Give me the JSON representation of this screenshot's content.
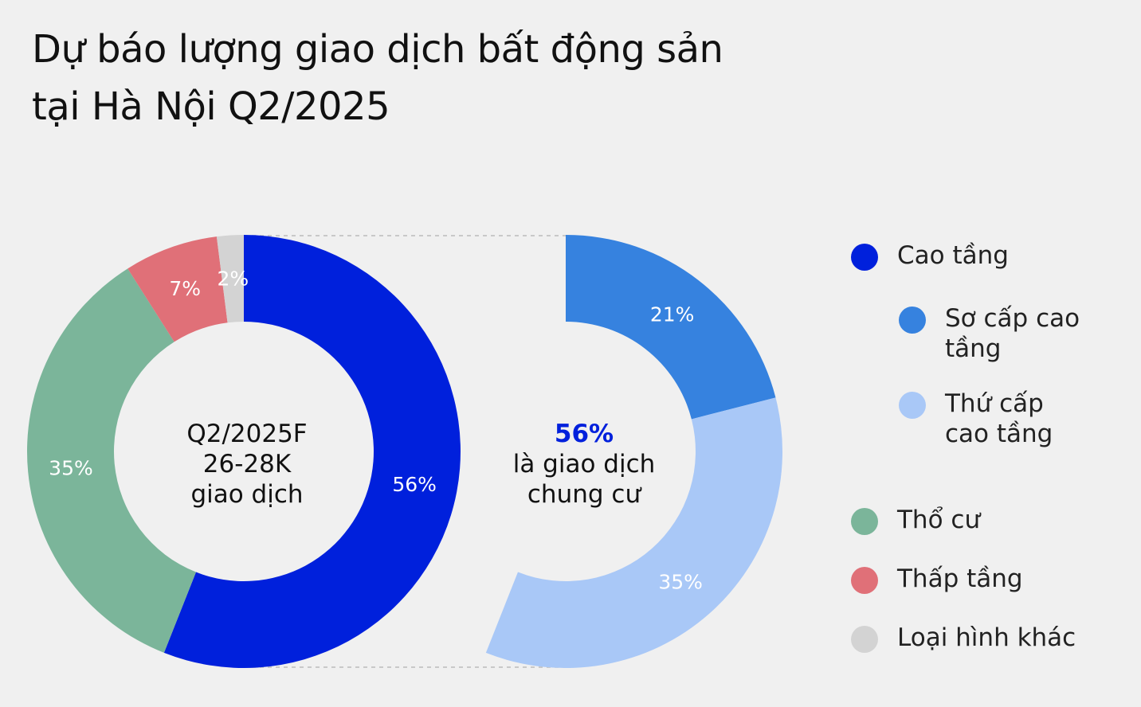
{
  "title_lines": [
    "Dự báo lượng giao dịch bất động sản",
    "tại Hà Nội Q2/2025"
  ],
  "colors": {
    "cao_tang": "#0020dc",
    "so_cap": "#3682df",
    "thu_cap": "#a9c8f7",
    "tho_cu": "#7bb59a",
    "thap_tang": "#e07078",
    "khac": "#d3d3d3",
    "bg": "#f0f0f0"
  },
  "chart_data": [
    {
      "type": "pie",
      "variant": "donut",
      "center_text": [
        "Q2/2025F",
        "26-28K",
        "giao dịch"
      ],
      "slices": [
        {
          "label": "Cao tầng",
          "value": 56,
          "label_text": "56%",
          "color": "#0020dc"
        },
        {
          "label": "Thổ cư",
          "value": 35,
          "label_text": "35%",
          "color": "#7bb59a"
        },
        {
          "label": "Thấp tầng",
          "value": 7,
          "label_text": "7%",
          "color": "#e07078"
        },
        {
          "label": "Loại hình khác",
          "value": 2,
          "label_text": "2%",
          "color": "#d3d3d3"
        }
      ]
    },
    {
      "type": "pie",
      "variant": "partial-donut",
      "center_highlight": "56%",
      "center_text": [
        "là giao dịch",
        "chung cư"
      ],
      "slices": [
        {
          "label": "Sơ cấp cao tầng",
          "value": 21,
          "label_text": "21%",
          "color": "#3682df"
        },
        {
          "label": "Thứ cấp cao tầng",
          "value": 35,
          "label_text": "35%",
          "color": "#a9c8f7"
        }
      ]
    }
  ],
  "legend": [
    {
      "label": "Cao tầng",
      "color": "#0020dc"
    },
    {
      "label": "Sơ cấp cao tầng",
      "color": "#3682df"
    },
    {
      "label": "Thứ cấp cao tầng",
      "color": "#a9c8f7"
    },
    {
      "label": "Thổ cư",
      "color": "#7bb59a"
    },
    {
      "label": "Thấp tầng",
      "color": "#e07078"
    },
    {
      "label": "Loại hình khác",
      "color": "#d3d3d3"
    }
  ]
}
